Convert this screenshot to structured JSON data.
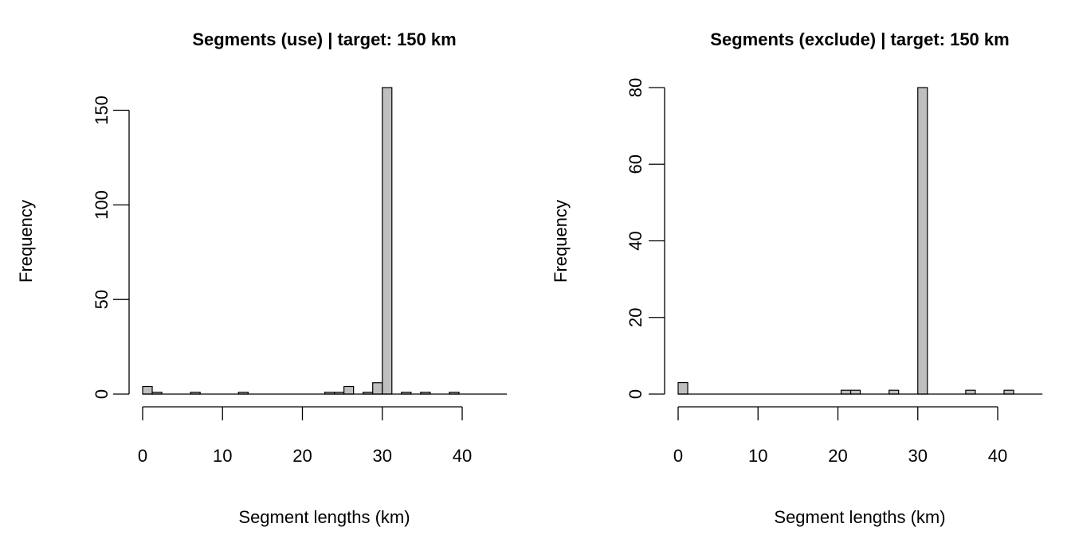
{
  "chart_data": [
    {
      "type": "bar",
      "title": "Segments (use) |  target: 150 km",
      "xlabel": "Segment lengths (km)",
      "ylabel": "Frequency",
      "xlim": [
        0,
        45
      ],
      "ylim": [
        0,
        162
      ],
      "xticks": [
        0,
        10,
        20,
        30,
        40
      ],
      "yticks": [
        0,
        50,
        100,
        150
      ],
      "bin_width": 1.2,
      "bins": [
        {
          "start": 0.0,
          "count": 4
        },
        {
          "start": 1.2,
          "count": 1
        },
        {
          "start": 2.4,
          "count": 0
        },
        {
          "start": 3.6,
          "count": 0
        },
        {
          "start": 4.8,
          "count": 0
        },
        {
          "start": 6.0,
          "count": 1
        },
        {
          "start": 7.2,
          "count": 0
        },
        {
          "start": 8.4,
          "count": 0
        },
        {
          "start": 9.6,
          "count": 0
        },
        {
          "start": 10.8,
          "count": 0
        },
        {
          "start": 12.0,
          "count": 1
        },
        {
          "start": 13.2,
          "count": 0
        },
        {
          "start": 14.4,
          "count": 0
        },
        {
          "start": 15.6,
          "count": 0
        },
        {
          "start": 16.8,
          "count": 0
        },
        {
          "start": 18.0,
          "count": 0
        },
        {
          "start": 19.2,
          "count": 0
        },
        {
          "start": 20.4,
          "count": 0
        },
        {
          "start": 21.6,
          "count": 0
        },
        {
          "start": 22.8,
          "count": 1
        },
        {
          "start": 24.0,
          "count": 1
        },
        {
          "start": 25.2,
          "count": 4
        },
        {
          "start": 26.4,
          "count": 0
        },
        {
          "start": 27.6,
          "count": 1
        },
        {
          "start": 28.8,
          "count": 6
        },
        {
          "start": 30.0,
          "count": 162
        },
        {
          "start": 31.2,
          "count": 0
        },
        {
          "start": 32.4,
          "count": 1
        },
        {
          "start": 33.6,
          "count": 0
        },
        {
          "start": 34.8,
          "count": 1
        },
        {
          "start": 36.0,
          "count": 0
        },
        {
          "start": 37.2,
          "count": 0
        },
        {
          "start": 38.4,
          "count": 1
        },
        {
          "start": 39.6,
          "count": 0
        },
        {
          "start": 40.8,
          "count": 0
        },
        {
          "start": 42.0,
          "count": 0
        },
        {
          "start": 43.2,
          "count": 0
        },
        {
          "start": 44.4,
          "count": 0
        }
      ]
    },
    {
      "type": "bar",
      "title": "Segments (exclude) |  target: 150 km",
      "xlabel": "Segment lengths (km)",
      "ylabel": "Frequency",
      "xlim": [
        0,
        45
      ],
      "ylim": [
        0,
        80
      ],
      "xticks": [
        0,
        10,
        20,
        30,
        40
      ],
      "yticks": [
        0,
        20,
        40,
        60,
        80
      ],
      "bin_width": 1.2,
      "bins": [
        {
          "start": 0.0,
          "count": 3
        },
        {
          "start": 1.2,
          "count": 0
        },
        {
          "start": 2.4,
          "count": 0
        },
        {
          "start": 3.6,
          "count": 0
        },
        {
          "start": 4.8,
          "count": 0
        },
        {
          "start": 6.0,
          "count": 0
        },
        {
          "start": 7.2,
          "count": 0
        },
        {
          "start": 8.4,
          "count": 0
        },
        {
          "start": 9.6,
          "count": 0
        },
        {
          "start": 10.8,
          "count": 0
        },
        {
          "start": 12.0,
          "count": 0
        },
        {
          "start": 13.2,
          "count": 0
        },
        {
          "start": 14.4,
          "count": 0
        },
        {
          "start": 15.6,
          "count": 0
        },
        {
          "start": 16.8,
          "count": 0
        },
        {
          "start": 18.0,
          "count": 0
        },
        {
          "start": 19.2,
          "count": 0
        },
        {
          "start": 20.4,
          "count": 1
        },
        {
          "start": 21.6,
          "count": 1
        },
        {
          "start": 22.8,
          "count": 0
        },
        {
          "start": 24.0,
          "count": 0
        },
        {
          "start": 25.2,
          "count": 0
        },
        {
          "start": 26.4,
          "count": 1
        },
        {
          "start": 27.6,
          "count": 0
        },
        {
          "start": 28.8,
          "count": 0
        },
        {
          "start": 30.0,
          "count": 80
        },
        {
          "start": 31.2,
          "count": 0
        },
        {
          "start": 32.4,
          "count": 0
        },
        {
          "start": 33.6,
          "count": 0
        },
        {
          "start": 34.8,
          "count": 0
        },
        {
          "start": 36.0,
          "count": 1
        },
        {
          "start": 37.2,
          "count": 0
        },
        {
          "start": 38.4,
          "count": 0
        },
        {
          "start": 39.6,
          "count": 0
        },
        {
          "start": 40.8,
          "count": 1
        },
        {
          "start": 42.0,
          "count": 0
        },
        {
          "start": 43.2,
          "count": 0
        },
        {
          "start": 44.4,
          "count": 0
        }
      ]
    }
  ]
}
